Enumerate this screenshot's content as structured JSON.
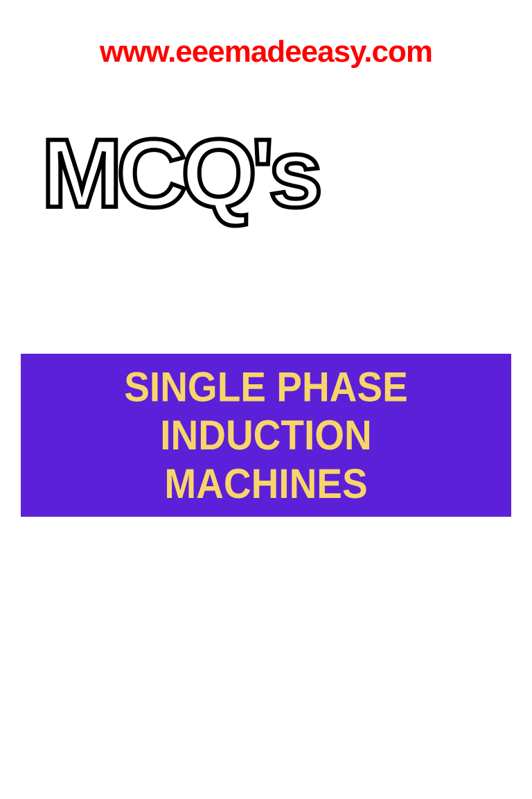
{
  "header": {
    "url": "www.eeemadeeasy.com"
  },
  "mcq": {
    "title": "MCQ's"
  },
  "banner": {
    "line1": "SINGLE PHASE INDUCTION",
    "line2": "MACHINES",
    "background_color": "#5c20d8",
    "text_color": "#f8d568",
    "font_size": 55,
    "font_weight": 900
  },
  "colors": {
    "url_color": "#ff0000",
    "mcq_stroke_color": "#000000",
    "mcq_fill_color": "#ffffff",
    "background": "#ffffff"
  },
  "typography": {
    "url_fontsize": 44,
    "mcq_fontsize": 140,
    "banner_fontsize": 55
  }
}
